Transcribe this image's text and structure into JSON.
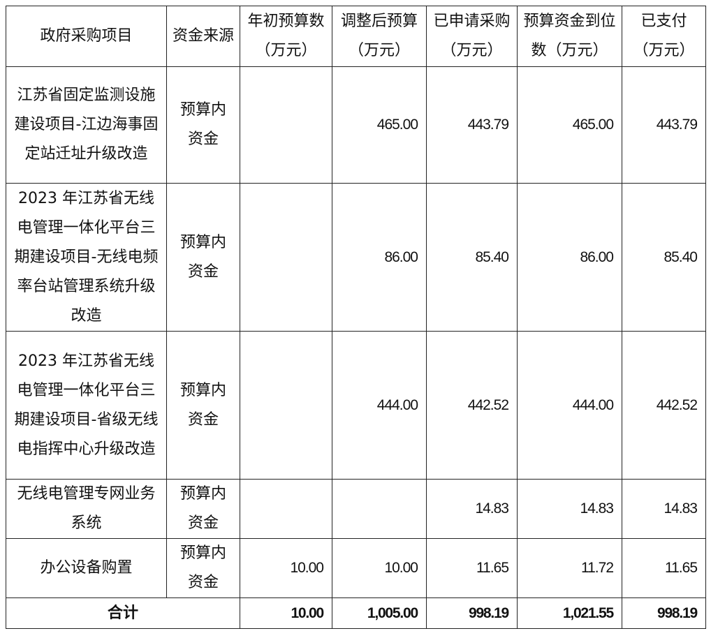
{
  "headers": [
    "政府采购项目",
    "资金来源",
    "年初预算数（万元）",
    "调整后预算（万元）",
    "已申请采购（万元）",
    "预算资金到位数（万元）",
    "已支付（万元）"
  ],
  "rows": [
    {
      "project": "江苏省固定监测设施建设项目-江边海事固定站迁址升级改造",
      "source": "预算内资金",
      "initial": "",
      "adjusted": "465.00",
      "applied": "443.79",
      "arrived": "465.00",
      "paid": "443.79"
    },
    {
      "project": "2023 年江苏省无线电管理一体化平台三期建设项目-无线电频率台站管理系统升级改造",
      "source": "预算内资金",
      "initial": "",
      "adjusted": "86.00",
      "applied": "85.40",
      "arrived": "86.00",
      "paid": "85.40"
    },
    {
      "project": "2023 年江苏省无线电管理一体化平台三期建设项目-省级无线电指挥中心升级改造",
      "source": "预算内资金",
      "initial": "",
      "adjusted": "444.00",
      "applied": "442.52",
      "arrived": "444.00",
      "paid": "442.52"
    },
    {
      "project": "无线电管理专网业务系统",
      "source": "预算内资金",
      "initial": "",
      "adjusted": "",
      "applied": "14.83",
      "arrived": "14.83",
      "paid": "14.83"
    },
    {
      "project": "办公设备购置",
      "source": "预算内资金",
      "initial": "10.00",
      "adjusted": "10.00",
      "applied": "11.65",
      "arrived": "11.72",
      "paid": "11.65"
    }
  ],
  "total": {
    "label": "合计",
    "initial": "10.00",
    "adjusted": "1,005.00",
    "applied": "998.19",
    "arrived": "1,021.55",
    "paid": "998.19"
  }
}
